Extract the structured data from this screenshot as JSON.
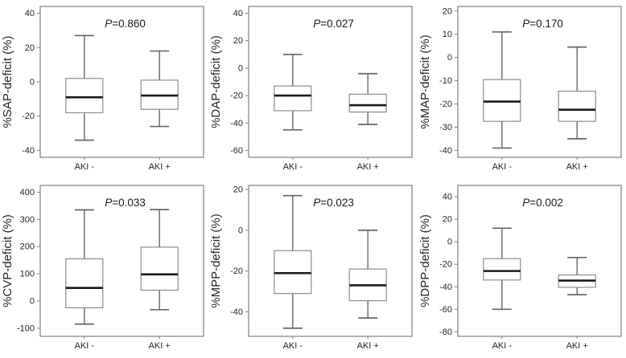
{
  "figure": {
    "background": "#ffffff",
    "categories": [
      "AKI -",
      "AKI +"
    ],
    "layout": "2 rows x 3 columns of box plots"
  },
  "style": {
    "frame_color": "#7f7f7f",
    "box_border_color": "#8c8c8c",
    "box_fill": "#ffffff",
    "median_color": "#1a1a1a",
    "whisker_color": "#666666",
    "text_color": "#262626"
  },
  "chart_data": [
    {
      "type": "boxplot",
      "ylabel": "%SAP-deficit (%)",
      "p_label": "P=0.860",
      "ylim": [
        -44,
        44
      ],
      "yticks": [
        40,
        20,
        0,
        -20,
        -40
      ],
      "categories": [
        "AKI -",
        "AKI +"
      ],
      "series": [
        {
          "name": "AKI -",
          "whisker_low": -34,
          "q1": -18,
          "median": -9,
          "q3": 2,
          "whisker_high": 27
        },
        {
          "name": "AKI +",
          "whisker_low": -26,
          "q1": -16,
          "median": -8,
          "q3": 1,
          "whisker_high": 18
        }
      ]
    },
    {
      "type": "boxplot",
      "ylabel": "%DAP-deficit (%)",
      "p_label": "P=0.027",
      "ylim": [
        -65,
        45
      ],
      "yticks": [
        40,
        20,
        0,
        -20,
        -40,
        -60
      ],
      "categories": [
        "AKI -",
        "AKI +"
      ],
      "series": [
        {
          "name": "AKI -",
          "whisker_low": -45,
          "q1": -31,
          "median": -20,
          "q3": -13,
          "whisker_high": 10
        },
        {
          "name": "AKI +",
          "whisker_low": -41,
          "q1": -32,
          "median": -27,
          "q3": -19,
          "whisker_high": -4
        }
      ]
    },
    {
      "type": "boxplot",
      "ylabel": "%MAP-deficit (%)",
      "p_label": "P=0.170",
      "ylim": [
        -43,
        22
      ],
      "yticks": [
        20,
        10,
        0,
        -10,
        -20,
        -30,
        -40
      ],
      "categories": [
        "AKI -",
        "AKI +"
      ],
      "series": [
        {
          "name": "AKI -",
          "whisker_low": -39,
          "q1": -27.5,
          "median": -19,
          "q3": -9.5,
          "whisker_high": 11
        },
        {
          "name": "AKI +",
          "whisker_low": -35,
          "q1": -27.5,
          "median": -22.5,
          "q3": -14.5,
          "whisker_high": 4.5
        }
      ]
    },
    {
      "type": "boxplot",
      "ylabel": "%CVP-deficit (%)",
      "p_label": "P=0.033",
      "ylim": [
        -130,
        425
      ],
      "yticks": [
        400,
        300,
        200,
        100,
        0,
        -100
      ],
      "categories": [
        "AKI -",
        "AKI +"
      ],
      "series": [
        {
          "name": "AKI -",
          "whisker_low": -85,
          "q1": -25,
          "median": 48,
          "q3": 155,
          "whisker_high": 335
        },
        {
          "name": "AKI +",
          "whisker_low": -32,
          "q1": 40,
          "median": 98,
          "q3": 198,
          "whisker_high": 336
        }
      ]
    },
    {
      "type": "boxplot",
      "ylabel": "%MPP-deficit (%)",
      "p_label": "P=0.023",
      "ylim": [
        -52,
        22
      ],
      "yticks": [
        20,
        0,
        -20,
        -40
      ],
      "categories": [
        "AKI -",
        "AKI +"
      ],
      "series": [
        {
          "name": "AKI -",
          "whisker_low": -48,
          "q1": -31,
          "median": -21,
          "q3": -10,
          "whisker_high": 17
        },
        {
          "name": "AKI +",
          "whisker_low": -43,
          "q1": -34.5,
          "median": -27,
          "q3": -19,
          "whisker_high": 0
        }
      ]
    },
    {
      "type": "boxplot",
      "ylabel": "%DPP-deficit (%)",
      "p_label": "P=0.002",
      "ylim": [
        -84,
        50
      ],
      "yticks": [
        40,
        20,
        0,
        -20,
        -40,
        -60,
        -80
      ],
      "categories": [
        "AKI -",
        "AKI +"
      ],
      "series": [
        {
          "name": "AKI -",
          "whisker_low": -60,
          "q1": -34,
          "median": -26,
          "q3": -15,
          "whisker_high": 12
        },
        {
          "name": "AKI +",
          "whisker_low": -47,
          "q1": -40.5,
          "median": -34.5,
          "q3": -29.5,
          "whisker_high": -14
        }
      ]
    }
  ]
}
